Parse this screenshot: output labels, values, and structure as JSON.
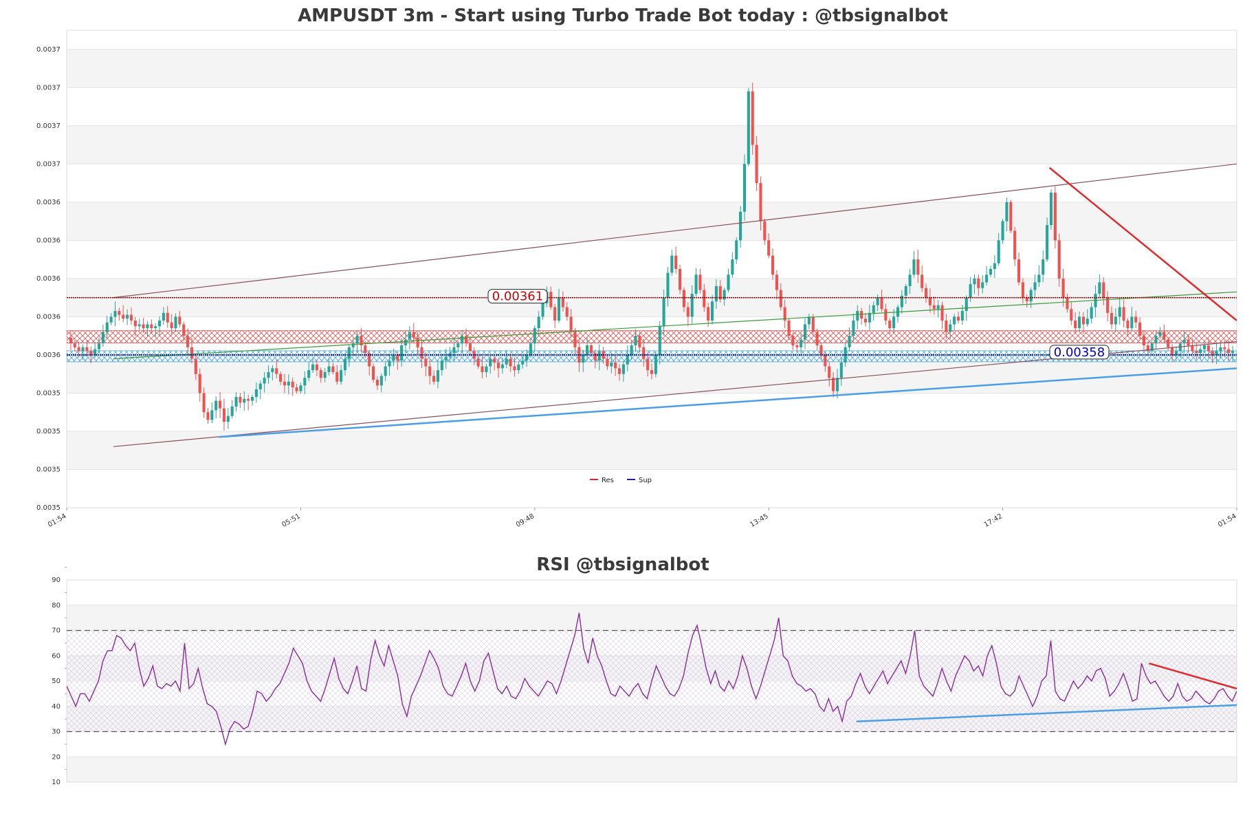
{
  "chart_data": [
    {
      "type": "candlestick",
      "title": "AMPUSDT 3m - Start using Turbo Trade Bot today : @tbsignalbot",
      "y_tick_labels": [
        "0.0035",
        "0.0035",
        "0.0035",
        "0.0035",
        "0.0036",
        "0.0036",
        "0.0036",
        "0.0036",
        "0.0036",
        "0.0037",
        "0.0037",
        "0.0037",
        "0.0037"
      ],
      "ylim": [
        0.0035,
        0.00375
      ],
      "x_tick_labels": [
        "01:54",
        "05:51",
        "09:48",
        "13:45",
        "17:42",
        "01:54"
      ],
      "resistance_level": 0.00361,
      "support_level": 0.00358,
      "resistance_label": "0.00361",
      "support_label": "0.00358",
      "legend": [
        {
          "name": "Res",
          "color": "#d62728"
        },
        {
          "name": "Sup",
          "color": "#1f1f9f"
        }
      ],
      "up_color": "#26a69a",
      "down_color": "#ef5350",
      "grid": true,
      "legend_position": "bottom-center",
      "trend_lines": [
        {
          "name": "upper-channel",
          "color": "#8b4c5c",
          "points": [
            [
              0.04,
              0.00361
            ],
            [
              1.0,
              0.00368
            ]
          ]
        },
        {
          "name": "lower-channel",
          "color": "#8b4c5c",
          "points": [
            [
              0.04,
              0.003532
            ],
            [
              1.0,
              0.003587
            ]
          ]
        },
        {
          "name": "mid-trend",
          "color": "#3a9a3a",
          "points": [
            [
              0.04,
              0.003578
            ],
            [
              1.0,
              0.003613
            ]
          ]
        },
        {
          "name": "support-trend",
          "color": "#4a9ee8",
          "points": [
            [
              0.13,
              0.003537
            ],
            [
              1.0,
              0.003573
            ]
          ]
        },
        {
          "name": "resistance-trend",
          "color": "#e02a2a",
          "points": [
            [
              0.84,
              0.003678
            ],
            [
              1.0,
              0.003598
            ]
          ]
        }
      ],
      "close_series": [
        0.003586,
        0.003584,
        0.003582,
        0.003584,
        0.003582,
        0.00358,
        0.003583,
        0.003586,
        0.003592,
        0.003597,
        0.0036,
        0.003603,
        0.003601,
        0.003599,
        0.003601,
        0.003598,
        0.003595,
        0.003596,
        0.003594,
        0.003596,
        0.003594,
        0.003595,
        0.003598,
        0.003602,
        0.003597,
        0.003594,
        0.0036,
        0.003596,
        0.00359,
        0.003584,
        0.003578,
        0.00357,
        0.00356,
        0.00355,
        0.003546,
        0.003551,
        0.003556,
        0.003552,
        0.003545,
        0.003548,
        0.003553,
        0.003558,
        0.003555,
        0.003557,
        0.003556,
        0.003558,
        0.003562,
        0.003565,
        0.003568,
        0.003571,
        0.003573,
        0.00357,
        0.003566,
        0.003564,
        0.003566,
        0.003563,
        0.003561,
        0.003564,
        0.003568,
        0.003572,
        0.003575,
        0.003572,
        0.003568,
        0.003571,
        0.003574,
        0.003571,
        0.003566,
        0.003572,
        0.003578,
        0.003584,
        0.003586,
        0.00359,
        0.003585,
        0.003581,
        0.003574,
        0.003567,
        0.003564,
        0.003569,
        0.003574,
        0.003577,
        0.00358,
        0.003577,
        0.003585,
        0.003588,
        0.003592,
        0.003589,
        0.003584,
        0.003578,
        0.003574,
        0.003569,
        0.003566,
        0.003572,
        0.003577,
        0.003579,
        0.003581,
        0.003584,
        0.003586,
        0.00359,
        0.003586,
        0.003582,
        0.003578,
        0.003574,
        0.003571,
        0.003574,
        0.003578,
        0.003576,
        0.003573,
        0.003575,
        0.003578,
        0.003574,
        0.003572,
        0.003575,
        0.003577,
        0.00358,
        0.003586,
        0.003594,
        0.0036,
        0.003607,
        0.003613,
        0.003605,
        0.003598,
        0.00361,
        0.003605,
        0.0036,
        0.003592,
        0.003584,
        0.003576,
        0.00358,
        0.003585,
        0.003581,
        0.003577,
        0.003582,
        0.003578,
        0.003574,
        0.003576,
        0.003573,
        0.00357,
        0.003575,
        0.00358,
        0.003585,
        0.00359,
        0.003584,
        0.003578,
        0.003572,
        0.00357,
        0.00358,
        0.003595,
        0.00361,
        0.003623,
        0.003632,
        0.003625,
        0.003614,
        0.003605,
        0.0036,
        0.003612,
        0.003622,
        0.003614,
        0.003605,
        0.003598,
        0.003608,
        0.003616,
        0.003609,
        0.003614,
        0.003622,
        0.00363,
        0.00364,
        0.003655,
        0.00368,
        0.003718,
        0.00369,
        0.00367,
        0.00365,
        0.00364,
        0.003632,
        0.003622,
        0.003614,
        0.003605,
        0.003598,
        0.00359,
        0.003585,
        0.003584,
        0.003588,
        0.003596,
        0.0036,
        0.003592,
        0.003585,
        0.00358,
        0.003574,
        0.003568,
        0.003561,
        0.003568,
        0.003576,
        0.003584,
        0.00359,
        0.003598,
        0.003603,
        0.003599,
        0.003597,
        0.003602,
        0.003606,
        0.00361,
        0.003604,
        0.003598,
        0.003594,
        0.0036,
        0.003605,
        0.003611,
        0.003616,
        0.003622,
        0.00363,
        0.003622,
        0.003615,
        0.00361,
        0.003606,
        0.003604,
        0.003606,
        0.003598,
        0.003592,
        0.003596,
        0.0036,
        0.003598,
        0.003603,
        0.00361,
        0.003617,
        0.00362,
        0.003615,
        0.003618,
        0.003622,
        0.003625,
        0.003628,
        0.00364,
        0.00365,
        0.00366,
        0.003645,
        0.00363,
        0.003618,
        0.00361,
        0.003608,
        0.003614,
        0.003618,
        0.003622,
        0.00363,
        0.003648,
        0.003665,
        0.00364,
        0.00362,
        0.00361,
        0.003604,
        0.003598,
        0.003594,
        0.0036,
        0.003596,
        0.003599,
        0.003605,
        0.003612,
        0.003618,
        0.00361,
        0.003602,
        0.003596,
        0.0036,
        0.003605,
        0.003598,
        0.003594,
        0.0036,
        0.003597,
        0.00359,
        0.003585,
        0.003582,
        0.003586,
        0.00359,
        0.003592,
        0.003588,
        0.003584,
        0.00358,
        0.003582,
        0.003586,
        0.003588,
        0.003585,
        0.003582,
        0.003581,
        0.003583,
        0.003585,
        0.003582,
        0.00358,
        0.003582,
        0.003584,
        0.003583,
        0.003581,
        0.003582
      ]
    },
    {
      "type": "line",
      "title": "RSI @tbsignalbot",
      "y_tick_labels": [
        "10",
        "20",
        "30",
        "40",
        "50",
        "60",
        "70",
        "80",
        "90"
      ],
      "ylim": [
        10,
        90
      ],
      "overbought": 70,
      "oversold": 30,
      "series_color": "#8b2a9b",
      "grid": true,
      "trend_lines": [
        {
          "name": "rsi-support-trend",
          "color": "#4a9ee8",
          "points": [
            [
              0.675,
              34
            ],
            [
              1.0,
              40.5
            ]
          ]
        },
        {
          "name": "rsi-resistance-trend",
          "color": "#e02a2a",
          "points": [
            [
              0.925,
              57
            ],
            [
              1.0,
              47
            ]
          ]
        }
      ],
      "values": [
        48,
        44,
        40,
        45,
        45,
        42,
        46,
        50,
        58,
        62,
        62,
        68,
        67,
        64,
        62,
        65,
        55,
        48,
        51,
        56,
        48,
        47,
        49,
        48,
        50,
        46,
        65,
        47,
        49,
        55,
        47,
        41,
        40,
        38,
        32,
        25,
        31,
        34,
        33,
        31,
        32,
        38,
        46,
        45,
        42,
        44,
        47,
        49,
        53,
        57,
        63,
        60,
        57,
        50,
        46,
        44,
        42,
        47,
        53,
        59,
        51,
        47,
        45,
        50,
        56,
        47,
        46,
        58,
        66,
        60,
        56,
        64,
        58,
        52,
        41,
        36,
        44,
        48,
        52,
        57,
        62,
        59,
        55,
        48,
        45,
        44,
        48,
        52,
        57,
        50,
        46,
        50,
        58,
        61,
        54,
        47,
        45,
        48,
        44,
        43,
        46,
        51,
        48,
        46,
        44,
        47,
        50,
        49,
        45,
        50,
        56,
        62,
        68,
        77,
        63,
        57,
        67,
        60,
        56,
        50,
        45,
        44,
        48,
        46,
        44,
        47,
        49,
        45,
        43,
        50,
        56,
        52,
        48,
        45,
        44,
        47,
        52,
        61,
        68,
        72,
        64,
        55,
        49,
        54,
        48,
        46,
        50,
        47,
        52,
        60,
        55,
        48,
        43,
        48,
        54,
        60,
        66,
        75,
        60,
        58,
        52,
        49,
        48,
        46,
        47,
        45,
        40,
        38,
        43,
        38,
        40,
        34,
        42,
        44,
        49,
        53,
        48,
        45,
        48,
        51,
        54,
        49,
        52,
        55,
        58,
        53,
        60,
        70,
        52,
        48,
        46,
        44,
        49,
        55,
        50,
        46,
        52,
        56,
        60,
        58,
        54,
        56,
        52,
        60,
        64,
        57,
        48,
        45,
        44,
        46,
        52,
        48,
        44,
        40,
        44,
        50,
        52,
        66,
        46,
        43,
        42,
        46,
        50,
        47,
        49,
        52,
        50,
        54,
        55,
        51,
        44,
        46,
        49,
        53,
        48,
        42,
        43,
        57,
        52,
        49,
        50,
        47,
        44,
        42,
        44,
        49,
        44,
        42,
        43,
        46,
        44,
        42,
        41,
        43,
        46,
        47,
        44,
        42,
        46
      ]
    }
  ]
}
